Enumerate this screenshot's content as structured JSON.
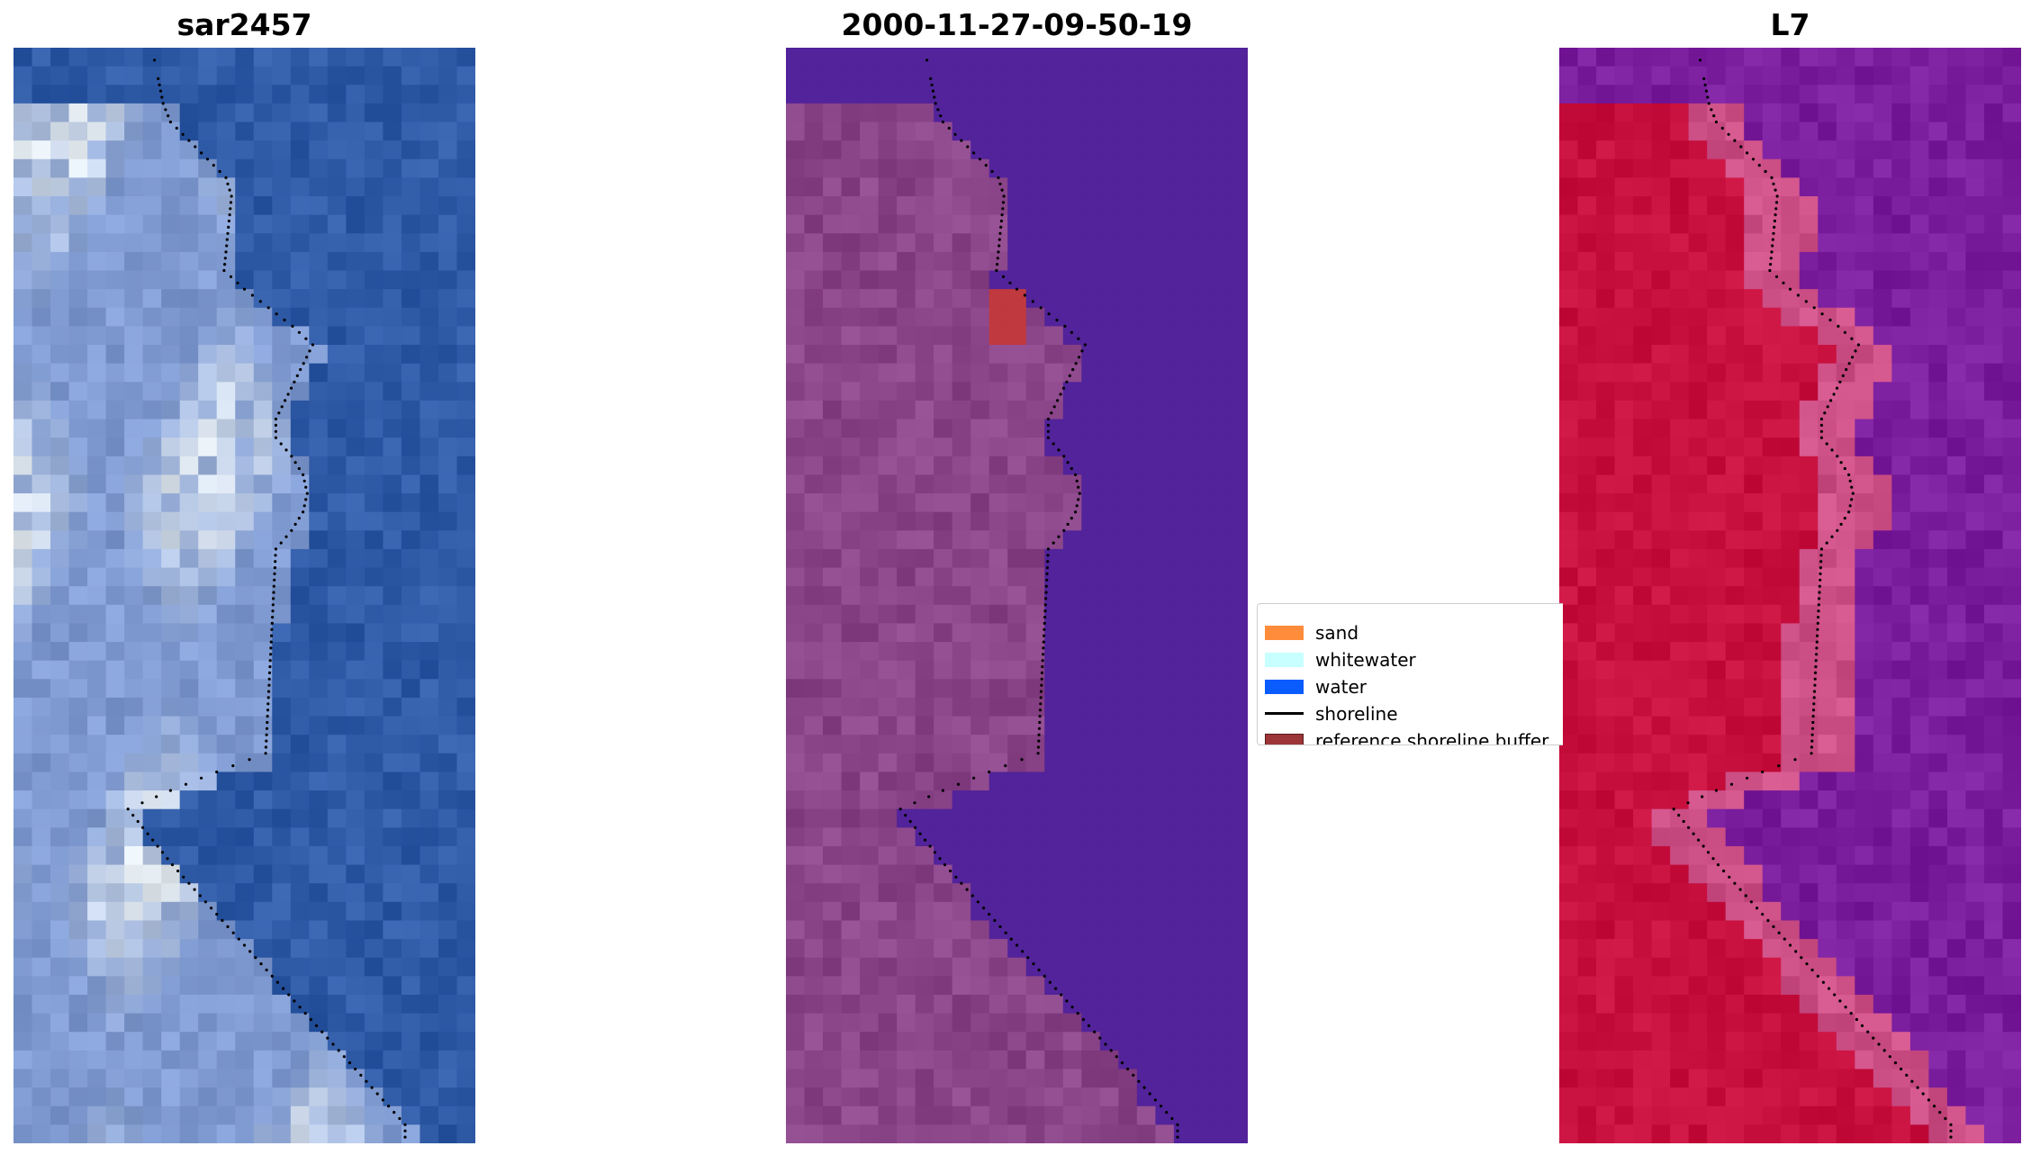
{
  "panels": [
    {
      "title": "sar2457",
      "kind": "rgb"
    },
    {
      "title": "2000-11-27-09-50-19",
      "kind": "classified"
    },
    {
      "title": "L7",
      "kind": "index"
    }
  ],
  "legend": {
    "items": [
      {
        "label": "sand",
        "color": "#ff8c3a",
        "type": "patch"
      },
      {
        "label": "whitewater",
        "color": "#c8ffff",
        "type": "patch"
      },
      {
        "label": "water",
        "color": "#0a5cff",
        "type": "patch"
      },
      {
        "label": "shoreline",
        "color": "#000000",
        "type": "line"
      },
      {
        "label": "reference shoreline buffer",
        "color": "#9b3538",
        "type": "patch"
      }
    ]
  },
  "colors": {
    "rgb_water": "#2f5aa6",
    "rgb_land": "#7f9ad0",
    "rgb_bright": "#e4ebf0",
    "class_water": "#52239a",
    "class_land": "#8a4488",
    "class_buffer": "#c0393f",
    "index_water": "#7a1e9e",
    "index_land": "#c8103f",
    "index_edge": "#cc4f86"
  }
}
